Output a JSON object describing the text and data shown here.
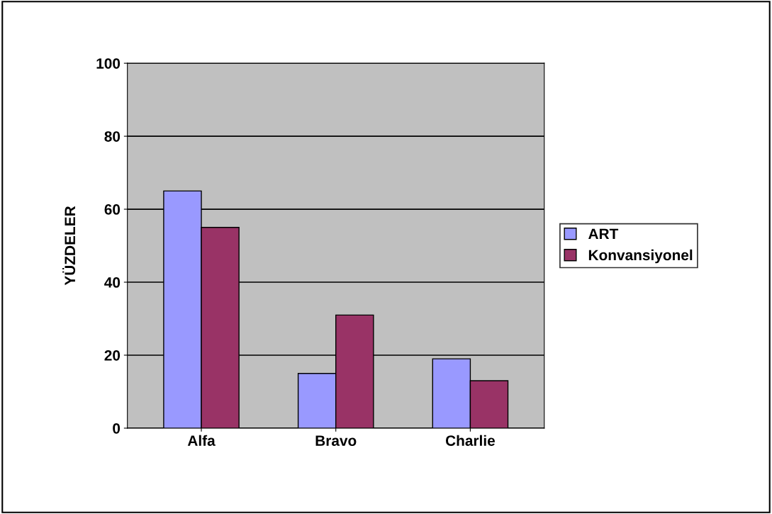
{
  "chart_data": {
    "type": "bar",
    "ylabel": "YÜZDELER",
    "categories": [
      "Alfa",
      "Bravo",
      "Charlie"
    ],
    "series": [
      {
        "name": "ART",
        "color": "#9999ff",
        "values": [
          65,
          15,
          19
        ]
      },
      {
        "name": "Konvansiyonel",
        "color": "#993366",
        "values": [
          55,
          31,
          13
        ]
      }
    ],
    "ylim": [
      0,
      100
    ],
    "yticks": [
      0,
      20,
      40,
      60,
      80,
      100
    ],
    "grid": "y",
    "legend": "right"
  }
}
